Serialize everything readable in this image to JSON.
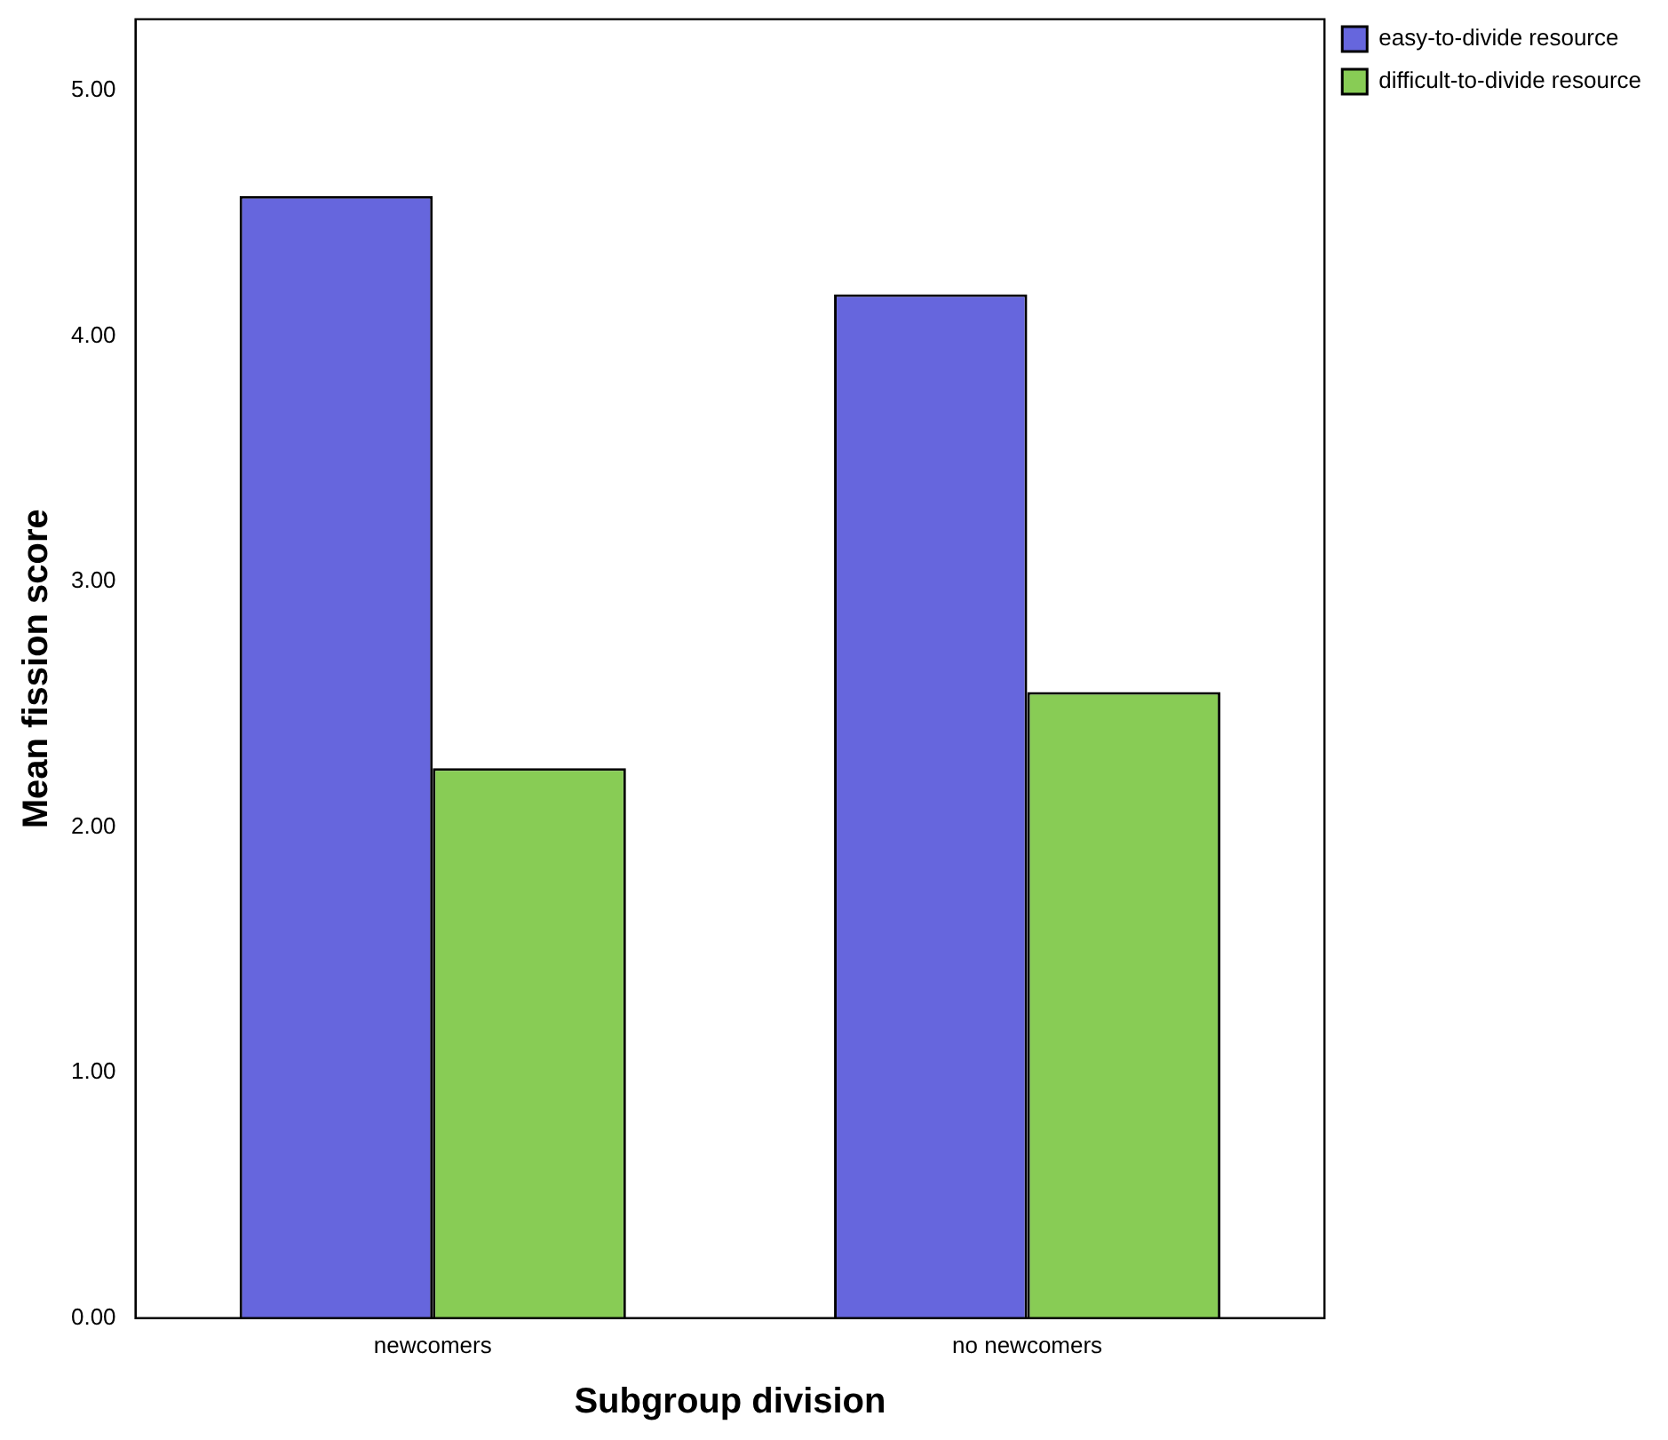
{
  "chart_data": {
    "type": "bar",
    "xlabel": "Subgroup division",
    "ylabel": "Mean fission score",
    "categories": [
      "newcomers",
      "no newcomers"
    ],
    "series": [
      {
        "name": "easy-to-divide resource",
        "color": "#6666dd",
        "values": [
          4.57,
          4.17
        ]
      },
      {
        "name": "difficult-to-divide resource",
        "color": "#88cc55",
        "values": [
          2.24,
          2.55
        ]
      }
    ],
    "ylim": [
      0,
      5.29
    ],
    "yticks": [
      {
        "value": 0,
        "label": "0.00"
      },
      {
        "value": 1,
        "label": "1.00"
      },
      {
        "value": 2,
        "label": "2.00"
      },
      {
        "value": 3,
        "label": "3.00"
      },
      {
        "value": 4,
        "label": "4.00"
      },
      {
        "value": 5,
        "label": "5.00"
      }
    ],
    "grid": false,
    "legend": "top right"
  }
}
